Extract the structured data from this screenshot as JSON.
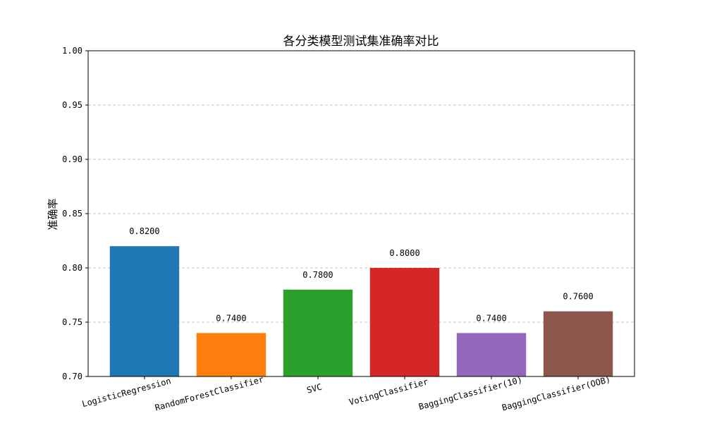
{
  "chart_data": {
    "type": "bar",
    "title": "各分类模型测试集准确率对比",
    "xlabel": "",
    "ylabel": "准确率",
    "categories": [
      "LogisticRegression",
      "RandomForestClassifier",
      "SVC",
      "VotingClassifier",
      "BaggingClassifier(10)",
      "BaggingClassifier(OOB)"
    ],
    "values": [
      0.82,
      0.74,
      0.78,
      0.8,
      0.74,
      0.76
    ],
    "value_labels": [
      "0.8200",
      "0.7400",
      "0.7800",
      "0.8000",
      "0.7400",
      "0.7600"
    ],
    "colors": [
      "#1f77b4",
      "#ff7f0e",
      "#2ca02c",
      "#d62728",
      "#9467bd",
      "#8c564b"
    ],
    "ylim": [
      0.7,
      1.0
    ],
    "yticks": [
      "0.70",
      "0.75",
      "0.80",
      "0.85",
      "0.90",
      "0.95",
      "1.00"
    ],
    "ytick_values": [
      0.7,
      0.75,
      0.8,
      0.85,
      0.9,
      0.95,
      1.0
    ],
    "grid": "y-dashed",
    "legend": "none"
  }
}
